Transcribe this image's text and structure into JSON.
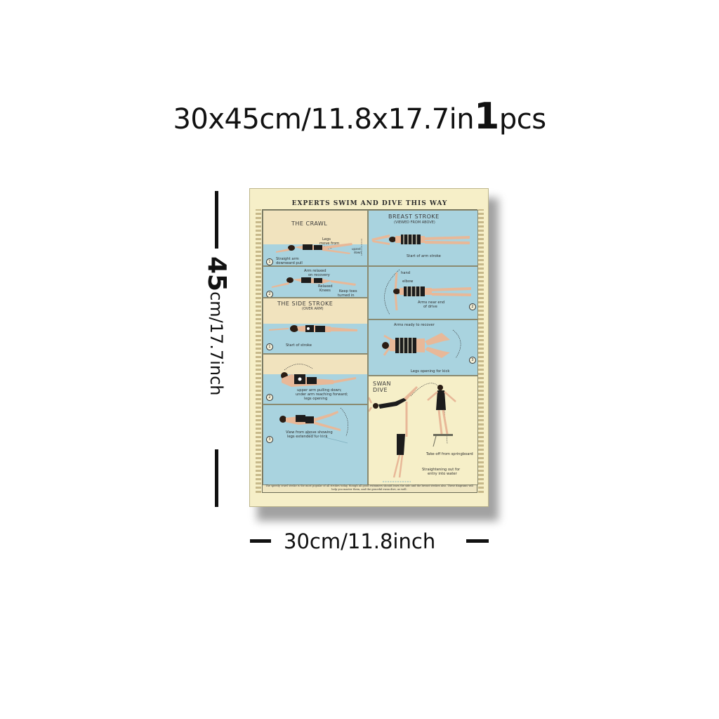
{
  "headline": {
    "main": "30x45cm/11.8x17.7in",
    "count": "1",
    "unit": "pcs"
  },
  "height_label": {
    "big": "45",
    "rest": "cm/17.7inch"
  },
  "width_label": "30cm/11.8inch",
  "poster": {
    "title": "EXPERTS SWIM AND DIVE THIS WAY",
    "crawl": {
      "label": "THE CRAWL",
      "notes": [
        "Legs",
        "move from",
        "hips",
        "upand",
        "down",
        "Straight arm",
        "downward pull",
        "Arm relaxed",
        "on recovery",
        "Relaxed",
        "Knees",
        "Keep toes",
        "turned in"
      ],
      "steps": [
        "1",
        "2"
      ]
    },
    "breast": {
      "label": "BREAST STROKE",
      "sublabel": "(VIEWED FROM ABOVE)",
      "notes": [
        "Start of arm stroke",
        "hand",
        "elbow",
        "Arms near end",
        "of drive",
        "Arms ready to recover",
        "Legs opening for kick"
      ],
      "steps": [
        "1",
        "2",
        "3"
      ]
    },
    "side": {
      "label": "THE SIDE STROKE",
      "sublabel": "(OVER ARM)",
      "notes": [
        "Start of stroke",
        "upper arm pulling down;",
        "under arm reaching forward;",
        "legs opening",
        "View from above showing",
        "legs extended for kick"
      ],
      "steps": [
        "1",
        "2",
        "3"
      ]
    },
    "swan": {
      "label_line1": "SWAN",
      "label_line2": "DIVE",
      "notes": [
        "Take-off from springboard",
        "Straightening out for",
        "entry into water"
      ]
    },
    "fine_print": "The speedy crawl stroke is the most popular of all strokes today, though all good swimmers should learn the side and the breast strokes also. These diagrams will help you master them, and the graceful swan dive, as well."
  },
  "colors": {
    "water": "#a9d3df",
    "paper": "#f6efc8",
    "suit": "#1c1c1c"
  }
}
